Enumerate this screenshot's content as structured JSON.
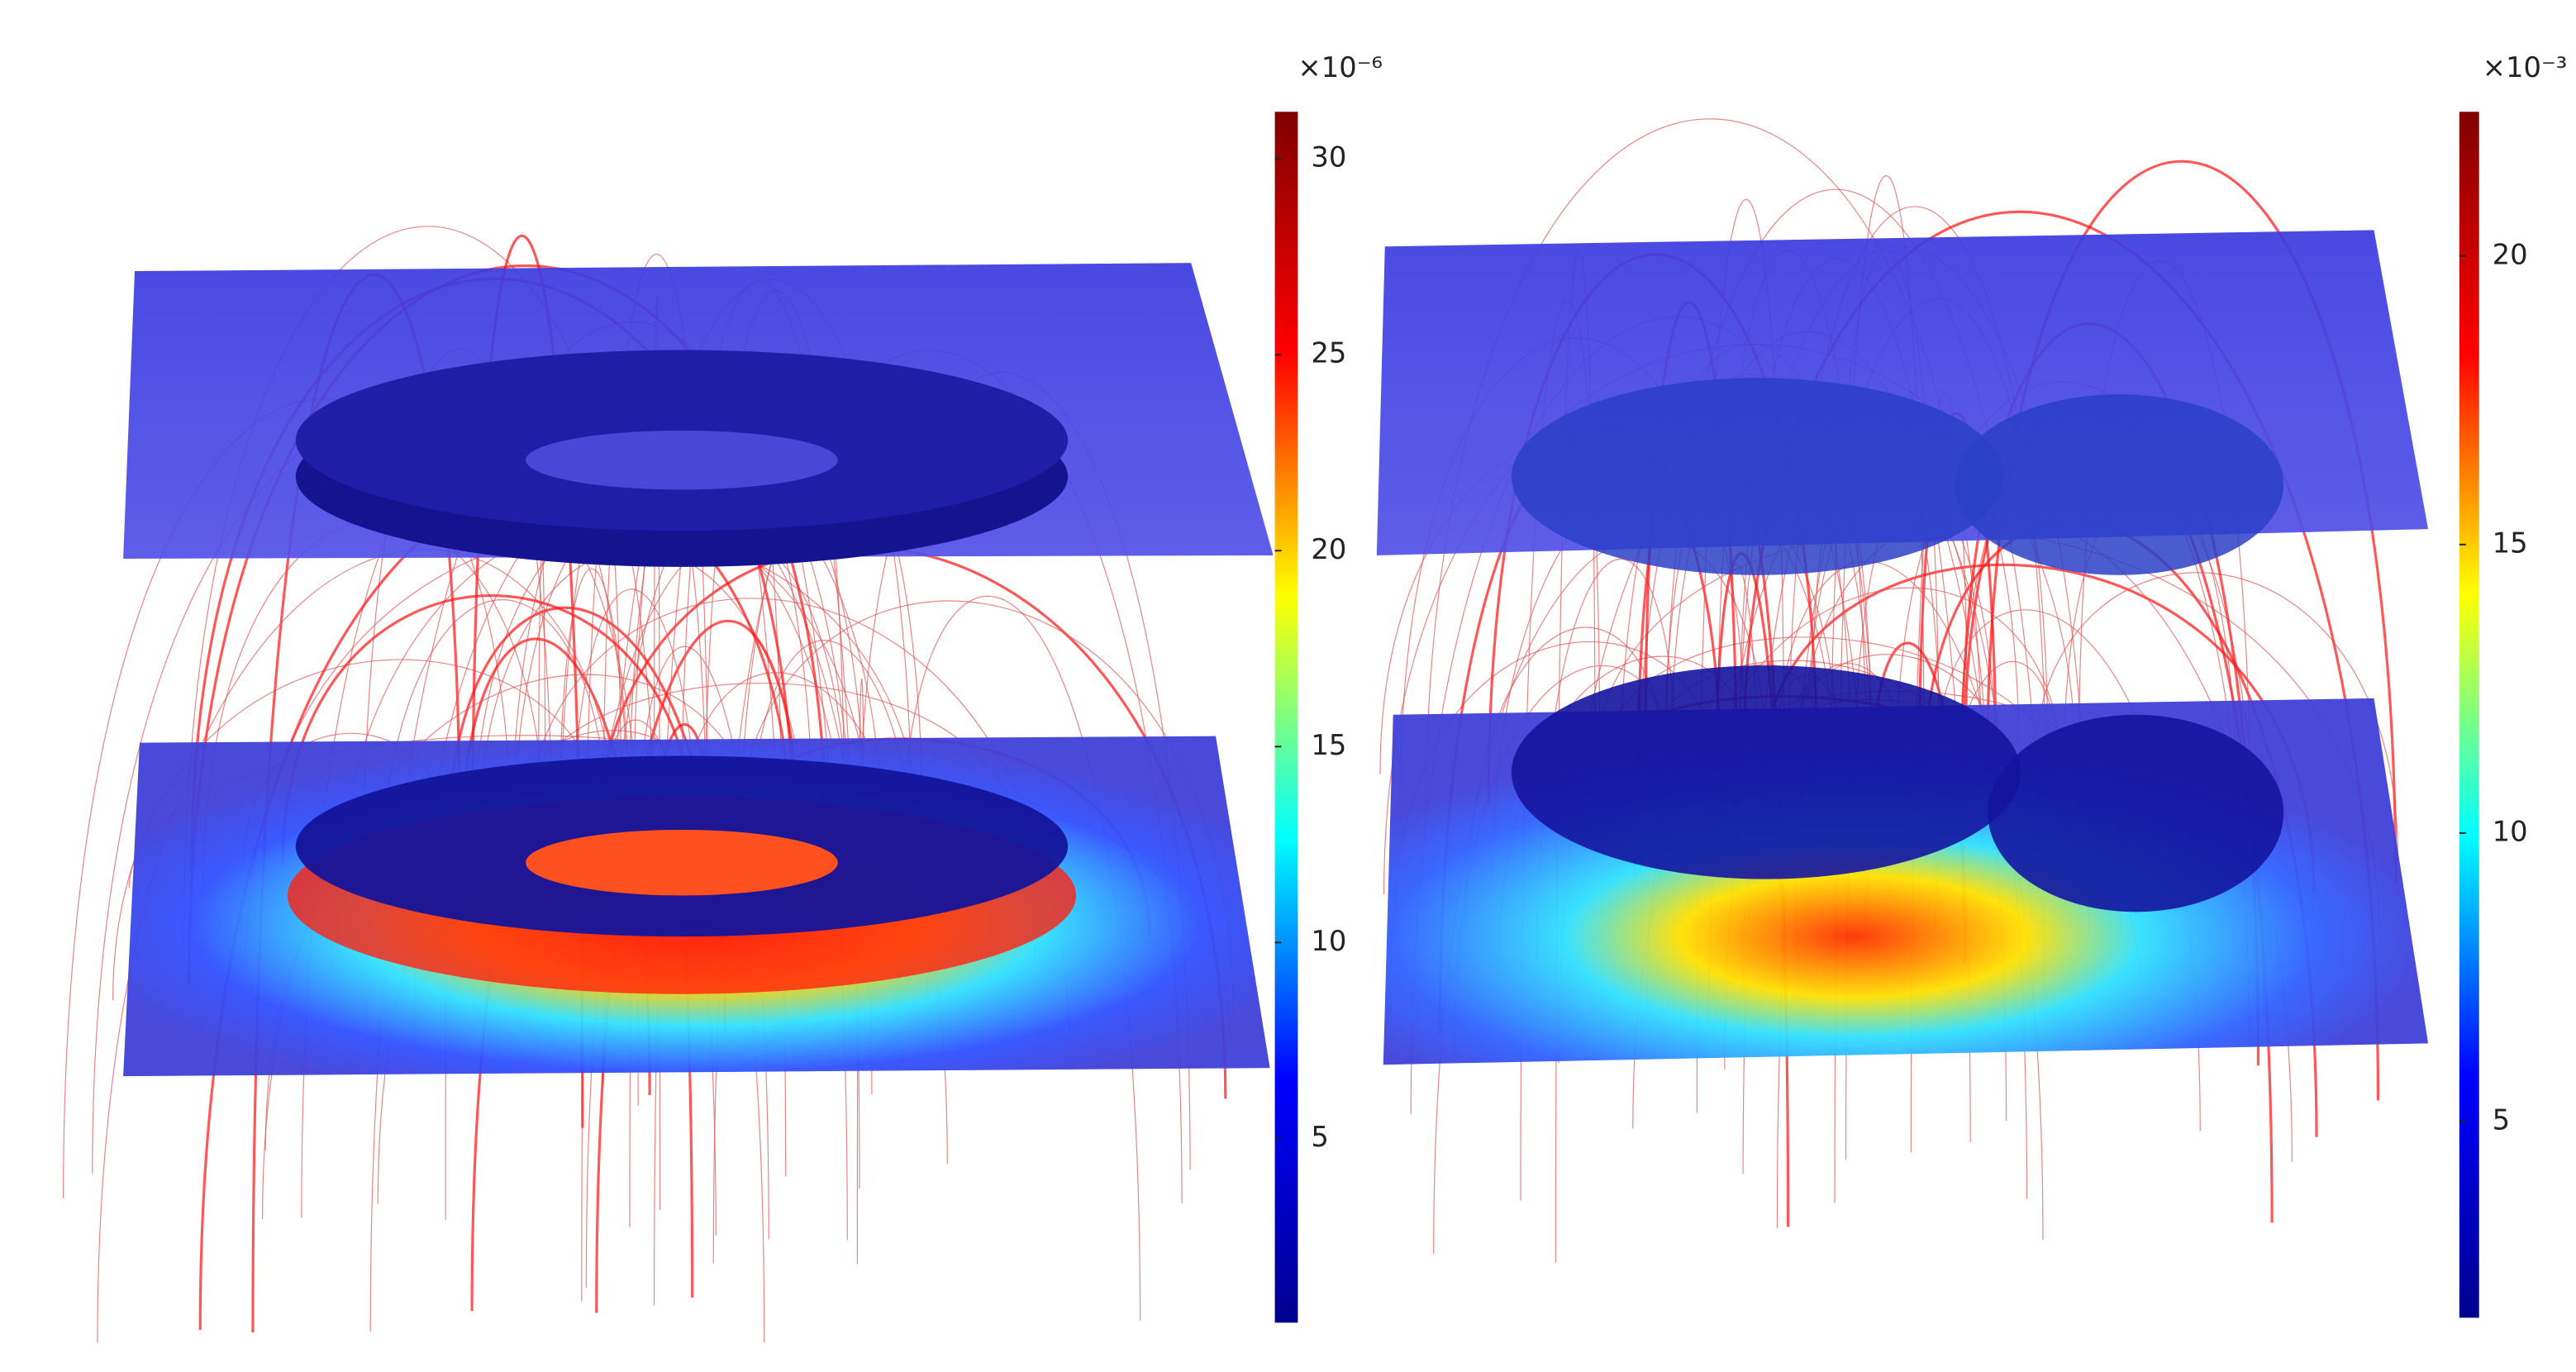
{
  "chart_data": [
    {
      "type": "colorbar",
      "multiplier_label": "×10⁻⁶",
      "ylim": [
        0.3,
        31.2
      ],
      "yticks": [
        5,
        10,
        15,
        20,
        25,
        30
      ],
      "colors": [
        "#00008f",
        "#0000ff",
        "#00ffff",
        "#ffff00",
        "#ff0000",
        "#800000"
      ]
    },
    {
      "type": "colorbar",
      "multiplier_label": "×10⁻³",
      "ylim": [
        1.6,
        22.5
      ],
      "yticks": [
        5,
        10,
        15,
        20
      ],
      "colors": [
        "#00008f",
        "#0000ff",
        "#00ffff",
        "#ffff00",
        "#ff0000",
        "#800000"
      ]
    }
  ]
}
